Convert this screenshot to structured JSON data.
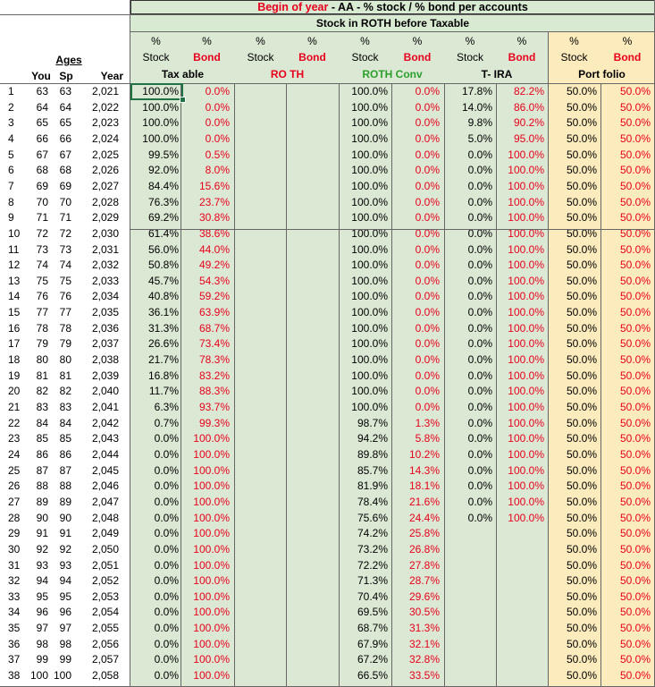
{
  "header": {
    "title_red": "Begin of year",
    "title_rest": " - AA - % stock / % bond per accounts",
    "subtitle": "Stock in ROTH before Taxable"
  },
  "left_headers": {
    "ages": "Ages",
    "you": "You",
    "sp": "Sp",
    "year": "Year"
  },
  "col_headers": {
    "pct": "%",
    "stock": "Stock",
    "bond": "Bond",
    "groups": [
      "Tax able",
      "RO TH",
      "ROTH Conv",
      "T- IRA",
      "Port folio"
    ]
  },
  "rows": [
    [
      "1",
      "63",
      "63",
      "2,021",
      "100.0%",
      "0.0%",
      "",
      "",
      "100.0%",
      "0.0%",
      "17.8%",
      "82.2%",
      "50.0%",
      "50.0%"
    ],
    [
      "2",
      "64",
      "64",
      "2,022",
      "100.0%",
      "0.0%",
      "",
      "",
      "100.0%",
      "0.0%",
      "14.0%",
      "86.0%",
      "50.0%",
      "50.0%"
    ],
    [
      "3",
      "65",
      "65",
      "2,023",
      "100.0%",
      "0.0%",
      "",
      "",
      "100.0%",
      "0.0%",
      "9.8%",
      "90.2%",
      "50.0%",
      "50.0%"
    ],
    [
      "4",
      "66",
      "66",
      "2,024",
      "100.0%",
      "0.0%",
      "",
      "",
      "100.0%",
      "0.0%",
      "5.0%",
      "95.0%",
      "50.0%",
      "50.0%"
    ],
    [
      "5",
      "67",
      "67",
      "2,025",
      "99.5%",
      "0.5%",
      "",
      "",
      "100.0%",
      "0.0%",
      "0.0%",
      "100.0%",
      "50.0%",
      "50.0%"
    ],
    [
      "6",
      "68",
      "68",
      "2,026",
      "92.0%",
      "8.0%",
      "",
      "",
      "100.0%",
      "0.0%",
      "0.0%",
      "100.0%",
      "50.0%",
      "50.0%"
    ],
    [
      "7",
      "69",
      "69",
      "2,027",
      "84.4%",
      "15.6%",
      "",
      "",
      "100.0%",
      "0.0%",
      "0.0%",
      "100.0%",
      "50.0%",
      "50.0%"
    ],
    [
      "8",
      "70",
      "70",
      "2,028",
      "76.3%",
      "23.7%",
      "",
      "",
      "100.0%",
      "0.0%",
      "0.0%",
      "100.0%",
      "50.0%",
      "50.0%"
    ],
    [
      "9",
      "71",
      "71",
      "2,029",
      "69.2%",
      "30.8%",
      "",
      "",
      "100.0%",
      "0.0%",
      "0.0%",
      "100.0%",
      "50.0%",
      "50.0%"
    ],
    [
      "10",
      "72",
      "72",
      "2,030",
      "61.4%",
      "38.6%",
      "",
      "",
      "100.0%",
      "0.0%",
      "0.0%",
      "100.0%",
      "50.0%",
      "50.0%"
    ],
    [
      "11",
      "73",
      "73",
      "2,031",
      "56.0%",
      "44.0%",
      "",
      "",
      "100.0%",
      "0.0%",
      "0.0%",
      "100.0%",
      "50.0%",
      "50.0%"
    ],
    [
      "12",
      "74",
      "74",
      "2,032",
      "50.8%",
      "49.2%",
      "",
      "",
      "100.0%",
      "0.0%",
      "0.0%",
      "100.0%",
      "50.0%",
      "50.0%"
    ],
    [
      "13",
      "75",
      "75",
      "2,033",
      "45.7%",
      "54.3%",
      "",
      "",
      "100.0%",
      "0.0%",
      "0.0%",
      "100.0%",
      "50.0%",
      "50.0%"
    ],
    [
      "14",
      "76",
      "76",
      "2,034",
      "40.8%",
      "59.2%",
      "",
      "",
      "100.0%",
      "0.0%",
      "0.0%",
      "100.0%",
      "50.0%",
      "50.0%"
    ],
    [
      "15",
      "77",
      "77",
      "2,035",
      "36.1%",
      "63.9%",
      "",
      "",
      "100.0%",
      "0.0%",
      "0.0%",
      "100.0%",
      "50.0%",
      "50.0%"
    ],
    [
      "16",
      "78",
      "78",
      "2,036",
      "31.3%",
      "68.7%",
      "",
      "",
      "100.0%",
      "0.0%",
      "0.0%",
      "100.0%",
      "50.0%",
      "50.0%"
    ],
    [
      "17",
      "79",
      "79",
      "2,037",
      "26.6%",
      "73.4%",
      "",
      "",
      "100.0%",
      "0.0%",
      "0.0%",
      "100.0%",
      "50.0%",
      "50.0%"
    ],
    [
      "18",
      "80",
      "80",
      "2,038",
      "21.7%",
      "78.3%",
      "",
      "",
      "100.0%",
      "0.0%",
      "0.0%",
      "100.0%",
      "50.0%",
      "50.0%"
    ],
    [
      "19",
      "81",
      "81",
      "2,039",
      "16.8%",
      "83.2%",
      "",
      "",
      "100.0%",
      "0.0%",
      "0.0%",
      "100.0%",
      "50.0%",
      "50.0%"
    ],
    [
      "20",
      "82",
      "82",
      "2,040",
      "11.7%",
      "88.3%",
      "",
      "",
      "100.0%",
      "0.0%",
      "0.0%",
      "100.0%",
      "50.0%",
      "50.0%"
    ],
    [
      "21",
      "83",
      "83",
      "2,041",
      "6.3%",
      "93.7%",
      "",
      "",
      "100.0%",
      "0.0%",
      "0.0%",
      "100.0%",
      "50.0%",
      "50.0%"
    ],
    [
      "22",
      "84",
      "84",
      "2,042",
      "0.7%",
      "99.3%",
      "",
      "",
      "98.7%",
      "1.3%",
      "0.0%",
      "100.0%",
      "50.0%",
      "50.0%"
    ],
    [
      "23",
      "85",
      "85",
      "2,043",
      "0.0%",
      "100.0%",
      "",
      "",
      "94.2%",
      "5.8%",
      "0.0%",
      "100.0%",
      "50.0%",
      "50.0%"
    ],
    [
      "24",
      "86",
      "86",
      "2,044",
      "0.0%",
      "100.0%",
      "",
      "",
      "89.8%",
      "10.2%",
      "0.0%",
      "100.0%",
      "50.0%",
      "50.0%"
    ],
    [
      "25",
      "87",
      "87",
      "2,045",
      "0.0%",
      "100.0%",
      "",
      "",
      "85.7%",
      "14.3%",
      "0.0%",
      "100.0%",
      "50.0%",
      "50.0%"
    ],
    [
      "26",
      "88",
      "88",
      "2,046",
      "0.0%",
      "100.0%",
      "",
      "",
      "81.9%",
      "18.1%",
      "0.0%",
      "100.0%",
      "50.0%",
      "50.0%"
    ],
    [
      "27",
      "89",
      "89",
      "2,047",
      "0.0%",
      "100.0%",
      "",
      "",
      "78.4%",
      "21.6%",
      "0.0%",
      "100.0%",
      "50.0%",
      "50.0%"
    ],
    [
      "28",
      "90",
      "90",
      "2,048",
      "0.0%",
      "100.0%",
      "",
      "",
      "75.6%",
      "24.4%",
      "0.0%",
      "100.0%",
      "50.0%",
      "50.0%"
    ],
    [
      "29",
      "91",
      "91",
      "2,049",
      "0.0%",
      "100.0%",
      "",
      "",
      "74.2%",
      "25.8%",
      "",
      "",
      "50.0%",
      "50.0%"
    ],
    [
      "30",
      "92",
      "92",
      "2,050",
      "0.0%",
      "100.0%",
      "",
      "",
      "73.2%",
      "26.8%",
      "",
      "",
      "50.0%",
      "50.0%"
    ],
    [
      "31",
      "93",
      "93",
      "2,051",
      "0.0%",
      "100.0%",
      "",
      "",
      "72.2%",
      "27.8%",
      "",
      "",
      "50.0%",
      "50.0%"
    ],
    [
      "32",
      "94",
      "94",
      "2,052",
      "0.0%",
      "100.0%",
      "",
      "",
      "71.3%",
      "28.7%",
      "",
      "",
      "50.0%",
      "50.0%"
    ],
    [
      "33",
      "95",
      "95",
      "2,053",
      "0.0%",
      "100.0%",
      "",
      "",
      "70.4%",
      "29.6%",
      "",
      "",
      "50.0%",
      "50.0%"
    ],
    [
      "34",
      "96",
      "96",
      "2,054",
      "0.0%",
      "100.0%",
      "",
      "",
      "69.5%",
      "30.5%",
      "",
      "",
      "50.0%",
      "50.0%"
    ],
    [
      "35",
      "97",
      "97",
      "2,055",
      "0.0%",
      "100.0%",
      "",
      "",
      "68.7%",
      "31.3%",
      "",
      "",
      "50.0%",
      "50.0%"
    ],
    [
      "36",
      "98",
      "98",
      "2,056",
      "0.0%",
      "100.0%",
      "",
      "",
      "67.9%",
      "32.1%",
      "",
      "",
      "50.0%",
      "50.0%"
    ],
    [
      "37",
      "99",
      "99",
      "2,057",
      "0.0%",
      "100.0%",
      "",
      "",
      "67.2%",
      "32.8%",
      "",
      "",
      "50.0%",
      "50.0%"
    ],
    [
      "38",
      "100",
      "100",
      "2,058",
      "0.0%",
      "100.0%",
      "",
      "",
      "66.5%",
      "33.5%",
      "",
      "",
      "50.0%",
      "50.0%"
    ]
  ],
  "colors": {
    "title_red": "#e8001c",
    "bond_red": "#e8001c",
    "roth_conv_green": "#2ca02c",
    "account_bg": "#dbe8d4",
    "portfolio_bg": "#fcebbd",
    "selection": "#217346"
  }
}
